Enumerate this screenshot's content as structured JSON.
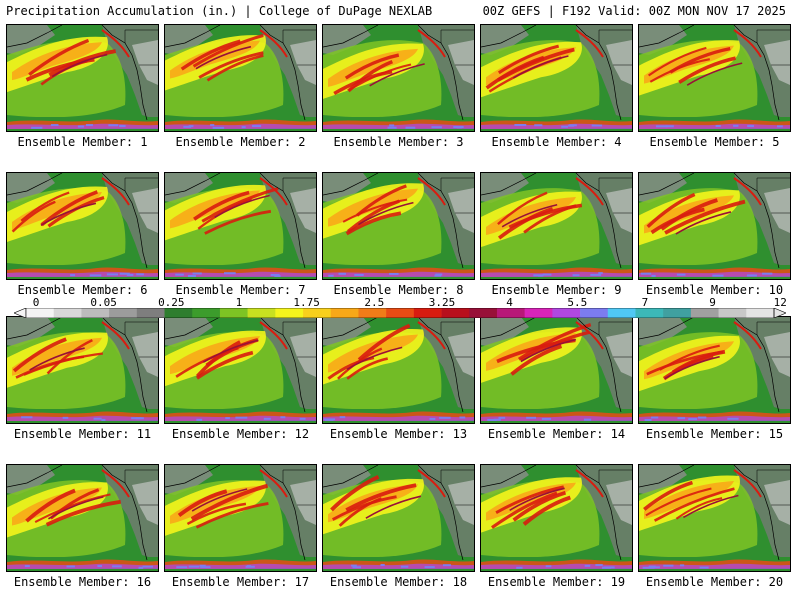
{
  "header": {
    "title": "Precipitation Accumulation (in.) | College of DuPage NEXLAB",
    "run_info": "00Z GEFS | F192 Valid: 00Z MON NOV 17 2025"
  },
  "panels": [
    {
      "label": "Ensemble Member: 1"
    },
    {
      "label": "Ensemble Member: 2"
    },
    {
      "label": "Ensemble Member: 3"
    },
    {
      "label": "Ensemble Member: 4"
    },
    {
      "label": "Ensemble Member: 5"
    },
    {
      "label": "Ensemble Member: 6"
    },
    {
      "label": "Ensemble Member: 7"
    },
    {
      "label": "Ensemble Member: 8"
    },
    {
      "label": "Ensemble Member: 9"
    },
    {
      "label": "Ensemble Member: 10"
    },
    {
      "label": "Ensemble Member: 11"
    },
    {
      "label": "Ensemble Member: 12"
    },
    {
      "label": "Ensemble Member: 13"
    },
    {
      "label": "Ensemble Member: 14"
    },
    {
      "label": "Ensemble Member: 15"
    },
    {
      "label": "Ensemble Member: 16"
    },
    {
      "label": "Ensemble Member: 17"
    },
    {
      "label": "Ensemble Member: 18"
    },
    {
      "label": "Ensemble Member: 19"
    },
    {
      "label": "Ensemble Member: 20"
    }
  ],
  "colorbar": {
    "tick_labels": [
      "0",
      "0.05",
      "0.25",
      "1",
      "1.75",
      "2.5",
      "3.25",
      "4",
      "5.5",
      "7",
      "9",
      "12"
    ],
    "colors": [
      "#f4f4f4",
      "#d8d8d8",
      "#bcbcbc",
      "#9c9c9c",
      "#7e7e7e",
      "#2e7d2e",
      "#3c9c2c",
      "#7ec424",
      "#c8e020",
      "#f4f41c",
      "#f8d01c",
      "#f8a818",
      "#f07c18",
      "#e84c14",
      "#d81c10",
      "#b8101c",
      "#981038",
      "#b81878",
      "#d824b8",
      "#b048e0",
      "#7c7cf0",
      "#50c8f4",
      "#3cb8b8",
      "#40a0a0",
      "#a0a0a0",
      "#c8c8c8",
      "#e4e4e4"
    ]
  }
}
